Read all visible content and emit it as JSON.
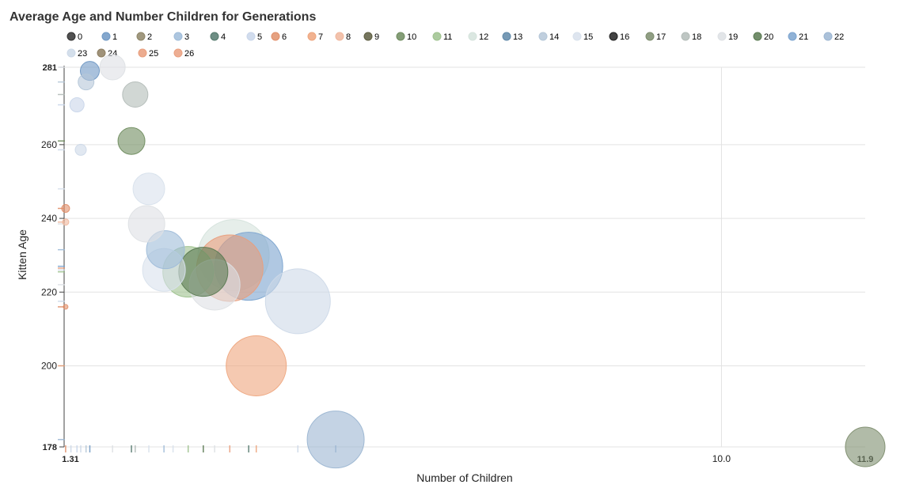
{
  "chart_data": {
    "type": "scatter",
    "subtype": "bubble",
    "title": "Average Age and Number Children for Generations",
    "xlabel": "Number of Children",
    "ylabel": "Kitten Age",
    "xlim": [
      1.31,
      11.9
    ],
    "ylim": [
      178,
      281
    ],
    "x_ticks": [
      {
        "value": 1.31,
        "label": "1.31",
        "bold": true
      },
      {
        "value": 10.0,
        "label": "10.0",
        "bold": false
      },
      {
        "value": 11.9,
        "label": "11.9",
        "bold": true
      }
    ],
    "y_ticks": [
      {
        "value": 178,
        "label": "178",
        "bold": true
      },
      {
        "value": 200,
        "label": "200",
        "bold": false
      },
      {
        "value": 220,
        "label": "220",
        "bold": false
      },
      {
        "value": 240,
        "label": "240",
        "bold": false
      },
      {
        "value": 260,
        "label": "260",
        "bold": false
      },
      {
        "value": 281,
        "label": "281",
        "bold": true
      }
    ],
    "grid": true,
    "legend_position": "top-left",
    "series": [
      {
        "name": "0",
        "color": "#333333",
        "points": []
      },
      {
        "name": "1",
        "color": "#6f98c4",
        "points": [
          {
            "x": 1.65,
            "y": 280.0,
            "r": 12
          }
        ]
      },
      {
        "name": "2",
        "color": "#8f8668",
        "points": []
      },
      {
        "name": "3",
        "color": "#9fbcd9",
        "points": [
          {
            "x": 2.65,
            "y": 231.5,
            "r": 24
          }
        ]
      },
      {
        "name": "4",
        "color": "#557a6e",
        "points": []
      },
      {
        "name": "5",
        "color": "#c9d6ea",
        "points": [
          {
            "x": 1.48,
            "y": 270.8,
            "r": 9
          }
        ]
      },
      {
        "name": "6",
        "color": "#e1906b",
        "points": [
          {
            "x": 1.33,
            "y": 242.7,
            "r": 5
          },
          {
            "x": 1.33,
            "y": 216.0,
            "r": 3
          }
        ]
      },
      {
        "name": "7",
        "color": "#eea57d",
        "points": [
          {
            "x": 3.85,
            "y": 200.0,
            "r": 38
          }
        ]
      },
      {
        "name": "8",
        "color": "#f0b79d",
        "points": [
          {
            "x": 1.33,
            "y": 239.0,
            "r": 4
          }
        ]
      },
      {
        "name": "9",
        "color": "#5e5e42",
        "points": []
      },
      {
        "name": "10",
        "color": "#6f8c5f",
        "points": [
          {
            "x": 2.2,
            "y": 261.0,
            "r": 17
          }
        ]
      },
      {
        "name": "11",
        "color": "#9ec28e",
        "points": [
          {
            "x": 2.95,
            "y": 225.5,
            "r": 32
          }
        ]
      },
      {
        "name": "12",
        "color": "#d5e3dc",
        "points": [
          {
            "x": 3.55,
            "y": 230.0,
            "r": 45
          }
        ]
      },
      {
        "name": "13",
        "color": "#5f88a8",
        "points": []
      },
      {
        "name": "14",
        "color": "#b5c7d8",
        "points": [
          {
            "x": 1.6,
            "y": 277.0,
            "r": 10
          }
        ]
      },
      {
        "name": "15",
        "color": "#d8e1ec",
        "points": [
          {
            "x": 2.43,
            "y": 248.0,
            "r": 20
          },
          {
            "x": 2.63,
            "y": 226.0,
            "r": 27
          }
        ]
      },
      {
        "name": "16",
        "color": "#222222",
        "points": []
      },
      {
        "name": "17",
        "color": "#7d8d6e",
        "points": [
          {
            "x": 11.9,
            "y": 178.0,
            "r": 25
          }
        ]
      },
      {
        "name": "18",
        "color": "#b3bcb8",
        "points": [
          {
            "x": 2.25,
            "y": 273.6,
            "r": 16
          }
        ]
      },
      {
        "name": "19",
        "color": "#dde0e4",
        "points": [
          {
            "x": 1.95,
            "y": 281.0,
            "r": 16
          },
          {
            "x": 2.4,
            "y": 238.5,
            "r": 23
          },
          {
            "x": 3.3,
            "y": 222.0,
            "r": 32
          }
        ]
      },
      {
        "name": "20",
        "color": "#5a7a52",
        "points": [
          {
            "x": 3.15,
            "y": 225.5,
            "r": 31
          }
        ]
      },
      {
        "name": "21",
        "color": "#7ca4cf",
        "points": [
          {
            "x": 3.75,
            "y": 227.0,
            "r": 43
          }
        ]
      },
      {
        "name": "22",
        "color": "#9cb6d2",
        "points": [
          {
            "x": 4.9,
            "y": 180.0,
            "r": 36
          }
        ]
      },
      {
        "name": "23",
        "color": "#cdd9e8",
        "points": [
          {
            "x": 1.53,
            "y": 258.6,
            "r": 7
          },
          {
            "x": 4.4,
            "y": 217.5,
            "r": 41
          }
        ]
      },
      {
        "name": "24",
        "color": "#8e7f62",
        "points": []
      },
      {
        "name": "25",
        "color": "#e99e7c",
        "points": [
          {
            "x": 3.5,
            "y": 226.5,
            "r": 42
          }
        ]
      },
      {
        "name": "26",
        "color": "#eaa080",
        "points": []
      }
    ],
    "rug_x": [
      {
        "x": 1.33,
        "color": "#e1906b"
      },
      {
        "x": 1.4,
        "color": "#cdd9e8"
      },
      {
        "x": 1.48,
        "color": "#c9d6ea"
      },
      {
        "x": 1.53,
        "color": "#cdd9e8"
      },
      {
        "x": 1.6,
        "color": "#b5c7d8"
      },
      {
        "x": 1.65,
        "color": "#6f98c4"
      },
      {
        "x": 1.95,
        "color": "#dde0e4"
      },
      {
        "x": 2.2,
        "color": "#557a6e"
      },
      {
        "x": 2.25,
        "color": "#b3bcb8"
      },
      {
        "x": 2.43,
        "color": "#d8e1ec"
      },
      {
        "x": 2.63,
        "color": "#9fbcd9"
      },
      {
        "x": 2.75,
        "color": "#d8e1ec"
      },
      {
        "x": 2.95,
        "color": "#9ec28e"
      },
      {
        "x": 3.15,
        "color": "#5a7a52"
      },
      {
        "x": 3.3,
        "color": "#dde0e4"
      },
      {
        "x": 3.5,
        "color": "#e99e7c"
      },
      {
        "x": 3.75,
        "color": "#557a6e"
      },
      {
        "x": 4.4,
        "color": "#cdd9e8"
      },
      {
        "x": 3.85,
        "color": "#eea57d"
      },
      {
        "x": 4.9,
        "color": "#9cb6d2"
      }
    ],
    "rug_y": [
      {
        "y": 281.0,
        "color": "#dde0e4"
      },
      {
        "y": 277.0,
        "color": "#b5c7d8"
      },
      {
        "y": 273.6,
        "color": "#b3bcb8"
      },
      {
        "y": 270.8,
        "color": "#c9d6ea"
      },
      {
        "y": 261.0,
        "color": "#6f8c5f"
      },
      {
        "y": 258.6,
        "color": "#cdd9e8"
      },
      {
        "y": 248.0,
        "color": "#d8e1ec"
      },
      {
        "y": 242.7,
        "color": "#e1906b"
      },
      {
        "y": 239.0,
        "color": "#f0b79d"
      },
      {
        "y": 238.5,
        "color": "#dde0e4"
      },
      {
        "y": 231.5,
        "color": "#9fbcd9"
      },
      {
        "y": 227.0,
        "color": "#7ca4cf"
      },
      {
        "y": 226.5,
        "color": "#e99e7c"
      },
      {
        "y": 226.0,
        "color": "#d8e1ec"
      },
      {
        "y": 225.5,
        "color": "#9ec28e"
      },
      {
        "y": 222.0,
        "color": "#dde0e4"
      },
      {
        "y": 217.5,
        "color": "#cdd9e8"
      },
      {
        "y": 216.0,
        "color": "#e1906b"
      },
      {
        "y": 200.0,
        "color": "#eea57d"
      },
      {
        "y": 180.0,
        "color": "#9cb6d2"
      }
    ]
  }
}
